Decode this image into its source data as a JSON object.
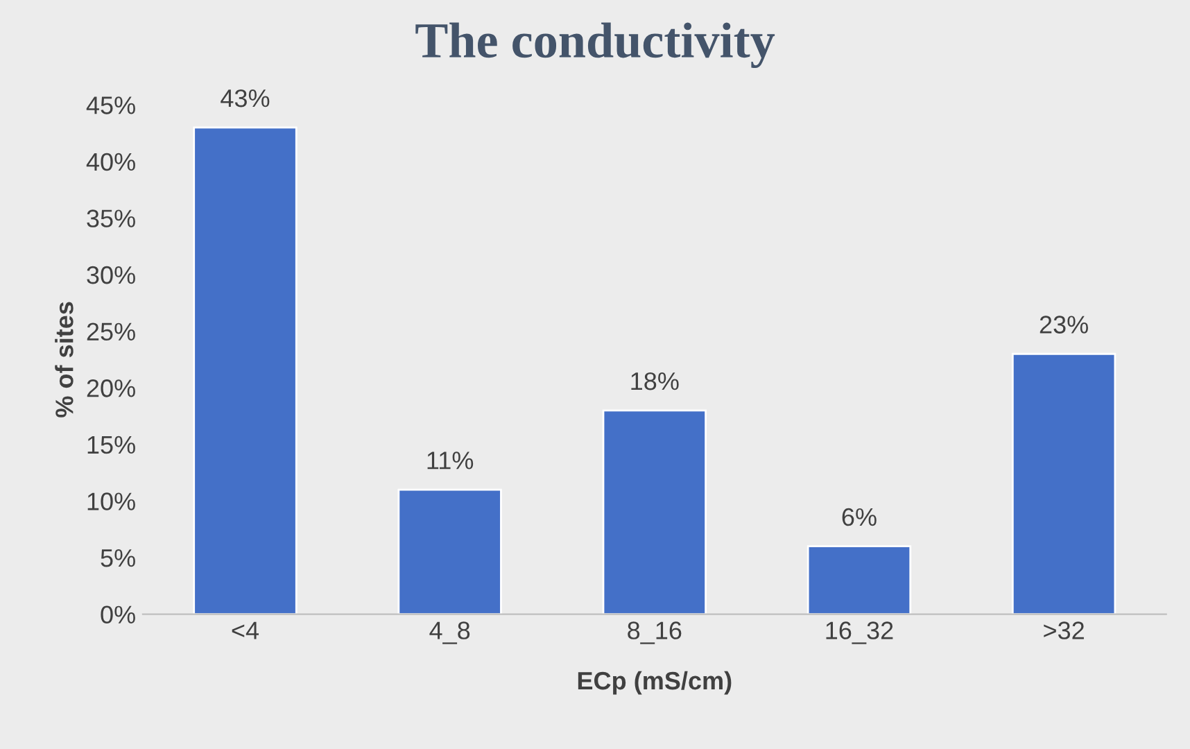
{
  "chart_data": {
    "type": "bar",
    "title": "The conductivity",
    "xlabel": "ECp (mS/cm)",
    "ylabel": "% of sites",
    "categories": [
      "<4",
      "4_8",
      "8_16",
      "16_32",
      ">32"
    ],
    "values": [
      43,
      11,
      18,
      6,
      23
    ],
    "color": "#4470c8",
    "data_labels": true,
    "value_labels": [
      "43%",
      "11%",
      "18%",
      "6%",
      "23%"
    ],
    "ylim": [
      0,
      45
    ],
    "yticks": [
      {
        "value": 0,
        "label": "0%"
      },
      {
        "value": 5,
        "label": "5%"
      },
      {
        "value": 10,
        "label": "10%"
      },
      {
        "value": 15,
        "label": "15%"
      },
      {
        "value": 20,
        "label": "20%"
      },
      {
        "value": 25,
        "label": "25%"
      },
      {
        "value": 30,
        "label": "30%"
      },
      {
        "value": 35,
        "label": "35%"
      },
      {
        "value": 40,
        "label": "40%"
      },
      {
        "value": 45,
        "label": "45%"
      }
    ],
    "grid": false,
    "legend": false
  }
}
